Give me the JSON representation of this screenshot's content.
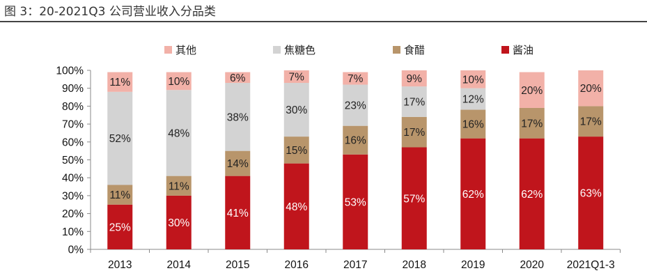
{
  "figure_title": "图 3：20-2021Q3 公司营业收入分品类",
  "colors": {
    "soy_sauce": "#c0151c",
    "vinegar": "#b8956b",
    "caramel": "#d3d3d3",
    "other": "#f2b1a8",
    "axis": "#888888",
    "title_rule": "#444444"
  },
  "chart_data": {
    "type": "bar",
    "stacked": true,
    "percent": true,
    "categories": [
      "2013",
      "2014",
      "2015",
      "2016",
      "2017",
      "2018",
      "2019",
      "2020",
      "2021Q1-3"
    ],
    "series": [
      {
        "name": "酱油",
        "values": [
          25,
          30,
          41,
          48,
          53,
          57,
          62,
          62,
          63
        ],
        "labels": [
          "25%",
          "30%",
          "41%",
          "48%",
          "53%",
          "57%",
          "62%",
          "62%",
          "63%"
        ]
      },
      {
        "name": "食醋",
        "values": [
          11,
          11,
          14,
          15,
          16,
          17,
          16,
          17,
          17
        ],
        "labels": [
          "11%",
          "11%",
          "14%",
          "15%",
          "16%",
          "17%",
          "16%",
          "17%",
          "17%"
        ]
      },
      {
        "name": "焦糖色",
        "values": [
          52,
          48,
          38,
          30,
          23,
          17,
          12,
          0,
          0
        ],
        "labels": [
          "52%",
          "48%",
          "38%",
          "30%",
          "23%",
          "17%",
          "12%",
          "",
          ""
        ]
      },
      {
        "name": "其他",
        "values": [
          11,
          10,
          6,
          7,
          7,
          9,
          10,
          20,
          20
        ],
        "labels": [
          "11%",
          "10%",
          "6%",
          "7%",
          "7%",
          "9%",
          "10%",
          "20%",
          "20%"
        ]
      }
    ],
    "ylim": [
      0,
      100
    ],
    "yticks": [
      "0%",
      "10%",
      "20%",
      "30%",
      "40%",
      "50%",
      "60%",
      "70%",
      "80%",
      "90%",
      "100%"
    ],
    "legend": {
      "position": "top",
      "order": [
        "其他",
        "焦糖色",
        "食醋",
        "酱油"
      ]
    },
    "grid": false
  }
}
